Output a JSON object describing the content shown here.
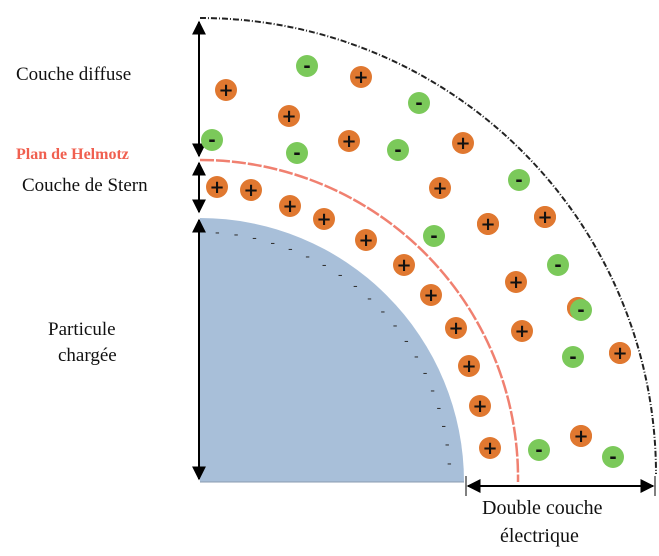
{
  "labels": {
    "diffuse": "Couche diffuse",
    "helmholtz": "Plan de Helmotz",
    "stern": "Couche de Stern",
    "particle_line1": "Particule",
    "particle_line2": "chargée",
    "double_layer_line1": "Double couche",
    "double_layer_line2": "électrique"
  },
  "signs": {
    "cation": "+",
    "anion": "-",
    "surface_charge": "-"
  },
  "colors": {
    "cation": "#E07830",
    "anion": "#7BC95A",
    "particle": "#A8BFD9",
    "helmholtz_plane": "#F08070",
    "helmholtz_label": "#F06050",
    "outer_boundary": "#222222"
  },
  "ions": [
    {
      "type": "cation"
    },
    {
      "type": "cation"
    },
    {
      "type": "cation"
    },
    {
      "type": "cation"
    },
    {
      "type": "cation"
    },
    {
      "type": "cation"
    },
    {
      "type": "cation"
    },
    {
      "type": "cation"
    },
    {
      "type": "cation"
    },
    {
      "type": "cation"
    },
    {
      "type": "cation"
    },
    {
      "type": "cation"
    },
    {
      "type": "cation"
    },
    {
      "type": "cation"
    },
    {
      "type": "cation"
    },
    {
      "type": "cation"
    },
    {
      "type": "cation"
    },
    {
      "type": "cation"
    },
    {
      "type": "cation"
    },
    {
      "type": "cation"
    },
    {
      "type": "cation"
    },
    {
      "type": "cation"
    },
    {
      "type": "cation"
    },
    {
      "type": "cation"
    },
    {
      "type": "cation"
    },
    {
      "type": "cation"
    },
    {
      "type": "cation"
    },
    {
      "type": "cation"
    },
    {
      "type": "cation"
    },
    {
      "type": "anion"
    },
    {
      "type": "anion"
    },
    {
      "type": "anion"
    },
    {
      "type": "anion"
    },
    {
      "type": "anion"
    },
    {
      "type": "anion"
    },
    {
      "type": "anion"
    },
    {
      "type": "anion"
    },
    {
      "type": "anion"
    },
    {
      "type": "anion"
    },
    {
      "type": "anion"
    },
    {
      "type": "anion"
    }
  ]
}
